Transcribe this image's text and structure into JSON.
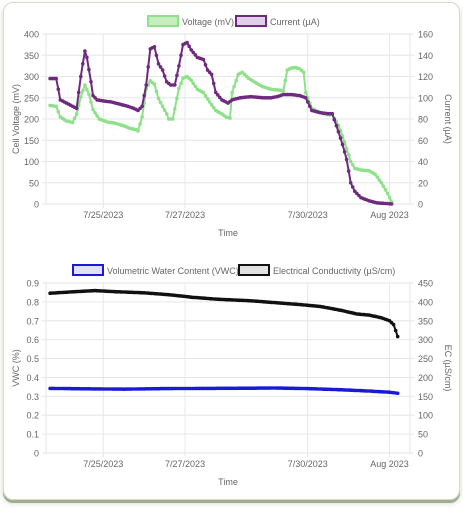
{
  "colors": {
    "voltage_fill": "#c6edbf",
    "voltage_line": "#8ee08a",
    "current_fill": "#e0cfe6",
    "current_line": "#6e2a7e",
    "vwc_fill": "#dfe2f7",
    "vwc_line": "#1a1ad6",
    "ec_fill": "#e2e2e2",
    "ec_line": "#111111",
    "grid": "#e6e6e6",
    "text": "#666666"
  },
  "chart_data": [
    {
      "type": "line",
      "title": "",
      "xlabel": "Time",
      "ylabel": "Cell Voltage (mV)",
      "y2label": "Current (µA)",
      "x_ticks": [
        "7/25/2023",
        "7/27/2023",
        "7/30/2023",
        "Aug 2023"
      ],
      "x_tick_days": [
        25,
        27,
        30,
        32
      ],
      "xlim_days": [
        23.6,
        32.5
      ],
      "ylim": [
        0,
        400
      ],
      "y_ticks": [
        "0",
        "50",
        "100",
        "150",
        "200",
        "250",
        "300",
        "350",
        "400"
      ],
      "y2lim": [
        0,
        160
      ],
      "y2_ticks": [
        "0",
        "20",
        "40",
        "60",
        "80",
        "100",
        "120",
        "140",
        "160"
      ],
      "grid": true,
      "legend_position": "top-center",
      "series": [
        {
          "name": "Voltage (mV)",
          "axis": "left",
          "points": [
            [
              23.7,
              232
            ],
            [
              23.85,
              230
            ],
            [
              23.95,
              205
            ],
            [
              24.1,
              195
            ],
            [
              24.25,
              192
            ],
            [
              24.35,
              212
            ],
            [
              24.45,
              252
            ],
            [
              24.55,
              280
            ],
            [
              24.65,
              258
            ],
            [
              24.75,
              222
            ],
            [
              24.9,
              200
            ],
            [
              25.1,
              193
            ],
            [
              25.3,
              190
            ],
            [
              25.5,
              184
            ],
            [
              25.65,
              178
            ],
            [
              25.8,
              175
            ],
            [
              25.85,
              172
            ],
            [
              25.95,
              205
            ],
            [
              26.05,
              270
            ],
            [
              26.15,
              290
            ],
            [
              26.25,
              282
            ],
            [
              26.35,
              248
            ],
            [
              26.45,
              230
            ],
            [
              26.55,
              212
            ],
            [
              26.6,
              200
            ],
            [
              26.7,
              200
            ],
            [
              26.85,
              272
            ],
            [
              26.95,
              296
            ],
            [
              27.05,
              300
            ],
            [
              27.15,
              291
            ],
            [
              27.3,
              270
            ],
            [
              27.45,
              262
            ],
            [
              27.6,
              240
            ],
            [
              27.75,
              220
            ],
            [
              27.9,
              212
            ],
            [
              28.0,
              205
            ],
            [
              28.1,
              202
            ],
            [
              28.15,
              262
            ],
            [
              28.3,
              305
            ],
            [
              28.4,
              310
            ],
            [
              28.55,
              296
            ],
            [
              28.7,
              287
            ],
            [
              28.9,
              276
            ],
            [
              29.1,
              270
            ],
            [
              29.3,
              268
            ],
            [
              29.4,
              266
            ],
            [
              29.5,
              315
            ],
            [
              29.6,
              320
            ],
            [
              29.7,
              321
            ],
            [
              29.8,
              318
            ],
            [
              29.9,
              310
            ],
            [
              29.95,
              262
            ],
            [
              30.1,
              225
            ],
            [
              30.3,
              215
            ],
            [
              30.5,
              210
            ],
            [
              30.6,
              210
            ],
            [
              30.75,
              185
            ],
            [
              30.85,
              160
            ],
            [
              30.95,
              130
            ],
            [
              31.05,
              100
            ],
            [
              31.15,
              84
            ],
            [
              31.3,
              80
            ],
            [
              31.5,
              78
            ],
            [
              31.65,
              70
            ],
            [
              31.8,
              50
            ],
            [
              31.95,
              25
            ],
            [
              32.05,
              5
            ]
          ]
        },
        {
          "name": "Current (µA)",
          "axis": "right",
          "points": [
            [
              23.7,
              118
            ],
            [
              23.85,
              118
            ],
            [
              23.95,
              98
            ],
            [
              24.1,
              95
            ],
            [
              24.25,
              92
            ],
            [
              24.35,
              90
            ],
            [
              24.45,
              120
            ],
            [
              24.55,
              144
            ],
            [
              24.6,
              138
            ],
            [
              24.7,
              115
            ],
            [
              24.75,
              102
            ],
            [
              24.85,
              98
            ],
            [
              25.0,
              97
            ],
            [
              25.2,
              96
            ],
            [
              25.4,
              94
            ],
            [
              25.6,
              92
            ],
            [
              25.75,
              90
            ],
            [
              25.85,
              88
            ],
            [
              25.95,
              92
            ],
            [
              26.05,
              112
            ],
            [
              26.15,
              146
            ],
            [
              26.25,
              148
            ],
            [
              26.35,
              132
            ],
            [
              26.45,
              126
            ],
            [
              26.55,
              115
            ],
            [
              26.65,
              112
            ],
            [
              26.75,
              112
            ],
            [
              26.85,
              130
            ],
            [
              26.95,
              150
            ],
            [
              27.05,
              152
            ],
            [
              27.15,
              145
            ],
            [
              27.3,
              138
            ],
            [
              27.45,
              136
            ],
            [
              27.55,
              126
            ],
            [
              27.65,
              122
            ],
            [
              27.75,
              105
            ],
            [
              27.9,
              98
            ],
            [
              28.0,
              96
            ],
            [
              28.05,
              95
            ],
            [
              28.15,
              98
            ],
            [
              28.35,
              100
            ],
            [
              28.6,
              101
            ],
            [
              28.9,
              100
            ],
            [
              29.1,
              100
            ],
            [
              29.25,
              101
            ],
            [
              29.4,
              103
            ],
            [
              29.6,
              103
            ],
            [
              29.8,
              102
            ],
            [
              29.95,
              100
            ],
            [
              30.1,
              88
            ],
            [
              30.3,
              86
            ],
            [
              30.5,
              85
            ],
            [
              30.6,
              85
            ],
            [
              30.75,
              68
            ],
            [
              30.85,
              56
            ],
            [
              30.95,
              42
            ],
            [
              31.05,
              20
            ],
            [
              31.15,
              12
            ],
            [
              31.3,
              6
            ],
            [
              31.5,
              3
            ],
            [
              31.7,
              1
            ],
            [
              31.9,
              0.5
            ],
            [
              32.05,
              0
            ]
          ]
        }
      ]
    },
    {
      "type": "line",
      "title": "",
      "xlabel": "Time",
      "ylabel": "VWC (%)",
      "y2label": "EC (µS/cm)",
      "x_ticks": [
        "7/25/2023",
        "7/27/2023",
        "7/30/2023",
        "Aug 2023"
      ],
      "x_tick_days": [
        25,
        27,
        30,
        32
      ],
      "xlim_days": [
        23.6,
        32.5
      ],
      "ylim": [
        0,
        0.9
      ],
      "y_ticks": [
        "0",
        "0.1",
        "0.2",
        "0.3",
        "0.4",
        "0.5",
        "0.6",
        "0.7",
        "0.8",
        "0.9"
      ],
      "y2lim": [
        0,
        450
      ],
      "y2_ticks": [
        "0",
        "50",
        "100",
        "150",
        "200",
        "250",
        "300",
        "350",
        "400",
        "450"
      ],
      "grid": true,
      "legend_position": "top-center",
      "series": [
        {
          "name": "Volumetric Water Content (VWC)",
          "axis": "left",
          "points": [
            [
              23.7,
              0.342
            ],
            [
              24.5,
              0.34
            ],
            [
              25.5,
              0.338
            ],
            [
              26.5,
              0.341
            ],
            [
              27.5,
              0.342
            ],
            [
              28.5,
              0.343
            ],
            [
              29.2,
              0.344
            ],
            [
              30.0,
              0.341
            ],
            [
              30.8,
              0.335
            ],
            [
              31.5,
              0.328
            ],
            [
              32.0,
              0.322
            ],
            [
              32.2,
              0.316
            ]
          ]
        },
        {
          "name": "Electrical Conductivity (µS/cm)",
          "axis": "right",
          "points": [
            [
              23.7,
              423
            ],
            [
              24.3,
              427
            ],
            [
              24.8,
              430
            ],
            [
              25.3,
              427
            ],
            [
              26.0,
              424
            ],
            [
              26.6,
              419
            ],
            [
              27.2,
              412
            ],
            [
              27.8,
              407
            ],
            [
              28.6,
              403
            ],
            [
              29.2,
              398
            ],
            [
              29.8,
              393
            ],
            [
              30.3,
              388
            ],
            [
              30.8,
              378
            ],
            [
              31.2,
              368
            ],
            [
              31.5,
              365
            ],
            [
              31.8,
              358
            ],
            [
              32.0,
              350
            ],
            [
              32.1,
              340
            ],
            [
              32.2,
              308
            ]
          ]
        }
      ]
    }
  ]
}
